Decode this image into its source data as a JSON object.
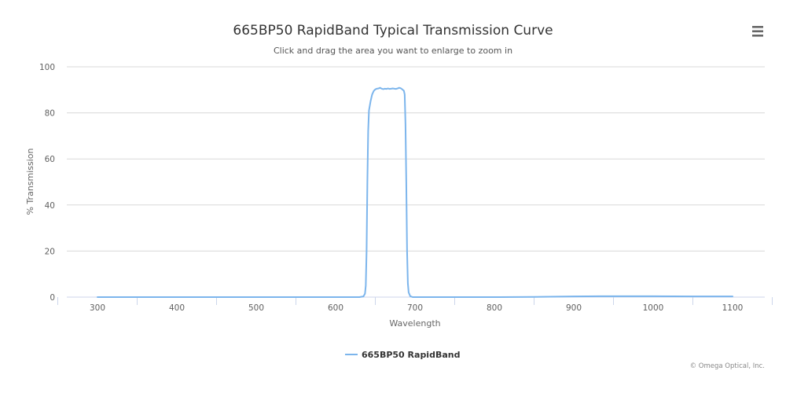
{
  "icons": {
    "menu": "hamburger-menu-icon"
  },
  "colors": {
    "series": "#7cb5ec",
    "grid": "#d8d8d8",
    "axis": "#ccd6eb",
    "menu_icon": "#666666"
  },
  "credits": "© Omega Optical, Inc.",
  "chart_data": {
    "type": "line",
    "title": "665BP50 RapidBand Typical Transmission Curve",
    "subtitle": "Click and drag the area you want to enlarge to zoom in",
    "xlabel": "Wavelength",
    "ylabel": "% Transmission",
    "xlim": [
      300,
      1100
    ],
    "ylim": [
      0,
      100
    ],
    "xticks": [
      300,
      400,
      500,
      600,
      700,
      800,
      900,
      1000,
      1100
    ],
    "yticks": [
      0,
      20,
      40,
      60,
      80,
      100
    ],
    "grid": "horizontal",
    "legend_position": "bottom-center",
    "series": [
      {
        "name": "665BP50 RapidBand",
        "points": [
          [
            300,
            0
          ],
          [
            400,
            0
          ],
          [
            500,
            0
          ],
          [
            600,
            0
          ],
          [
            630,
            0
          ],
          [
            635,
            0.3
          ],
          [
            637,
            1.5
          ],
          [
            638,
            5
          ],
          [
            639,
            20
          ],
          [
            640,
            50
          ],
          [
            641,
            72
          ],
          [
            642,
            81
          ],
          [
            644,
            85
          ],
          [
            646,
            88
          ],
          [
            648,
            89.5
          ],
          [
            650,
            90.2
          ],
          [
            652,
            90.5
          ],
          [
            654,
            90.6
          ],
          [
            656,
            90.9
          ],
          [
            658,
            90.5
          ],
          [
            660,
            90.3
          ],
          [
            662,
            90.5
          ],
          [
            664,
            90.4
          ],
          [
            666,
            90.6
          ],
          [
            668,
            90.4
          ],
          [
            670,
            90.5
          ],
          [
            672,
            90.6
          ],
          [
            674,
            90.5
          ],
          [
            676,
            90.4
          ],
          [
            678,
            90.6
          ],
          [
            680,
            90.9
          ],
          [
            682,
            90.7
          ],
          [
            684,
            90.2
          ],
          [
            686,
            89.6
          ],
          [
            687,
            88
          ],
          [
            688,
            75
          ],
          [
            689,
            50
          ],
          [
            690,
            20
          ],
          [
            691,
            6
          ],
          [
            692,
            2
          ],
          [
            694,
            0.4
          ],
          [
            697,
            0
          ],
          [
            750,
            0
          ],
          [
            800,
            0
          ],
          [
            850,
            0.1
          ],
          [
            900,
            0.3
          ],
          [
            950,
            0.4
          ],
          [
            1000,
            0.4
          ],
          [
            1050,
            0.3
          ],
          [
            1100,
            0.3
          ]
        ]
      }
    ]
  }
}
